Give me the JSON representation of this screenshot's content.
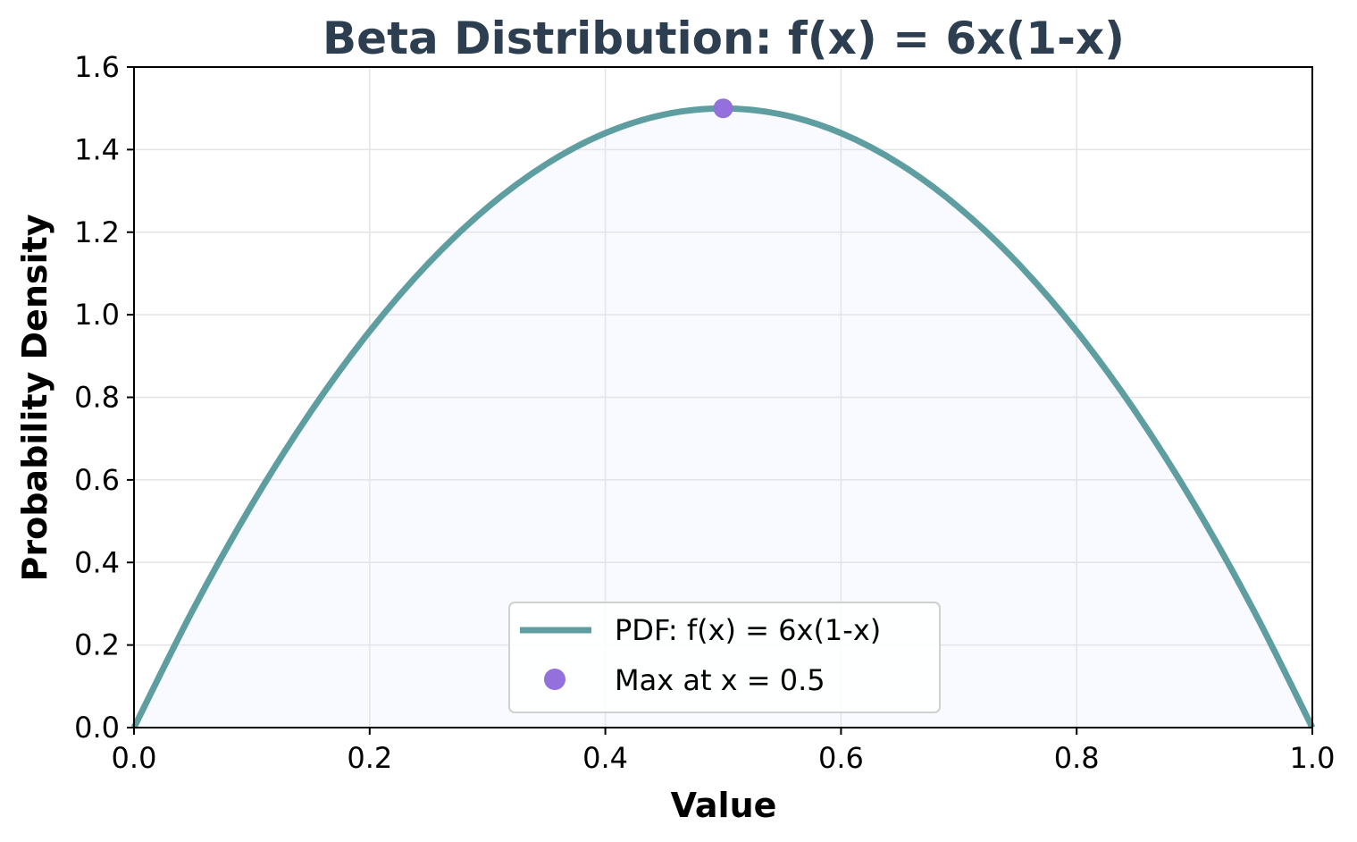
{
  "chart_data": {
    "type": "line",
    "title": "Beta Distribution: f(x) = 6x(1-x)",
    "xlabel": "Value",
    "ylabel": "Probability Density",
    "xlim": [
      0.0,
      1.0
    ],
    "ylim": [
      0.0,
      1.6
    ],
    "xticks": [
      "0.0",
      "0.2",
      "0.4",
      "0.6",
      "0.8",
      "1.0"
    ],
    "yticks": [
      "0.0",
      "0.2",
      "0.4",
      "0.6",
      "0.8",
      "1.0",
      "1.2",
      "1.4",
      "1.6"
    ],
    "grid": true,
    "legend_position": "bottom-center",
    "series": [
      {
        "name": "PDF: f(x) = 6x(1-x)",
        "kind": "line",
        "filled": true,
        "color": "#5f9ea0",
        "x": [
          0.0,
          0.05,
          0.1,
          0.15,
          0.2,
          0.25,
          0.3,
          0.35,
          0.4,
          0.45,
          0.5,
          0.55,
          0.6,
          0.65,
          0.7,
          0.75,
          0.8,
          0.85,
          0.9,
          0.95,
          1.0
        ],
        "y": [
          0.0,
          0.285,
          0.54,
          0.765,
          0.96,
          1.125,
          1.26,
          1.365,
          1.44,
          1.485,
          1.5,
          1.485,
          1.44,
          1.365,
          1.26,
          1.125,
          0.96,
          0.765,
          0.54,
          0.285,
          0.0
        ]
      },
      {
        "name": "Max at x = 0.5",
        "kind": "scatter",
        "color": "#9370db",
        "x": [
          0.5
        ],
        "y": [
          1.5
        ]
      }
    ],
    "colors": {
      "title": "#2c3e50",
      "fill": "#f8faff",
      "grid": "#e3e3e8",
      "axis": "#000000"
    }
  }
}
